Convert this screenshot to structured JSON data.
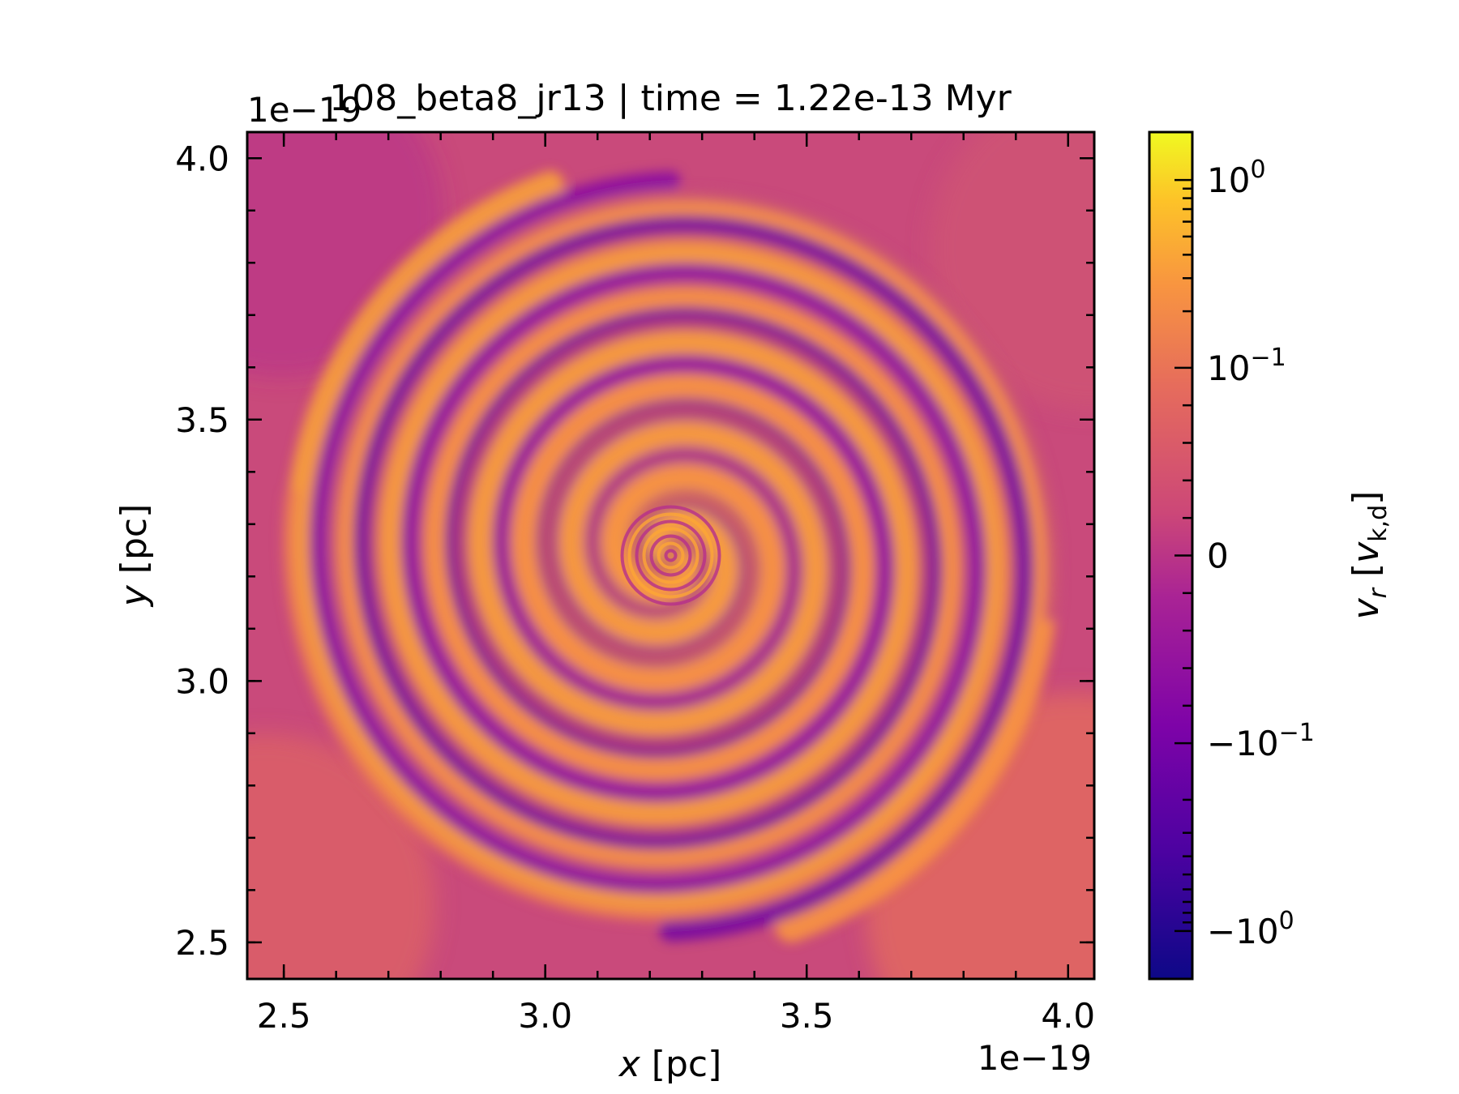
{
  "chart_data": {
    "type": "heatmap",
    "title": "108_beta8_jr13 | time = 1.22e-13 Myr",
    "xlabel": {
      "var": "x",
      "unit": "[pc]"
    },
    "ylabel": {
      "var": "y",
      "unit": "[pc]"
    },
    "x_offset_text": "1e−19",
    "y_offset_text": "1e−19",
    "xlim": [
      2.43,
      4.05
    ],
    "ylim": [
      2.43,
      4.05
    ],
    "x_ticks": [
      {
        "value": 2.5,
        "label": "2.5"
      },
      {
        "value": 3.0,
        "label": "3.0"
      },
      {
        "value": 3.5,
        "label": "3.5"
      },
      {
        "value": 4.0,
        "label": "4.0"
      }
    ],
    "y_ticks": [
      {
        "value": 2.5,
        "label": "2.5"
      },
      {
        "value": 3.0,
        "label": "3.0"
      },
      {
        "value": 3.5,
        "label": "3.5"
      },
      {
        "value": 4.0,
        "label": "4.0"
      }
    ],
    "minor_step": 0.1,
    "center": [
      3.24,
      3.24
    ],
    "colorbar": {
      "label_var": "v",
      "label_sub": "r",
      "label_unit_sub": "k,d",
      "colormap": "plasma",
      "scale": "symlog",
      "range": [
        -1.8,
        1.8
      ],
      "ticks": [
        {
          "value": 1,
          "base": "10",
          "exp": "0",
          "sign": ""
        },
        {
          "value": 0.1,
          "base": "10",
          "exp": "−1",
          "sign": ""
        },
        {
          "value": 0,
          "base": "0",
          "exp": "",
          "sign": ""
        },
        {
          "value": -0.1,
          "base": "10",
          "exp": "−1",
          "sign": "−"
        },
        {
          "value": -1,
          "base": "10",
          "exp": "0",
          "sign": "−"
        }
      ]
    }
  }
}
